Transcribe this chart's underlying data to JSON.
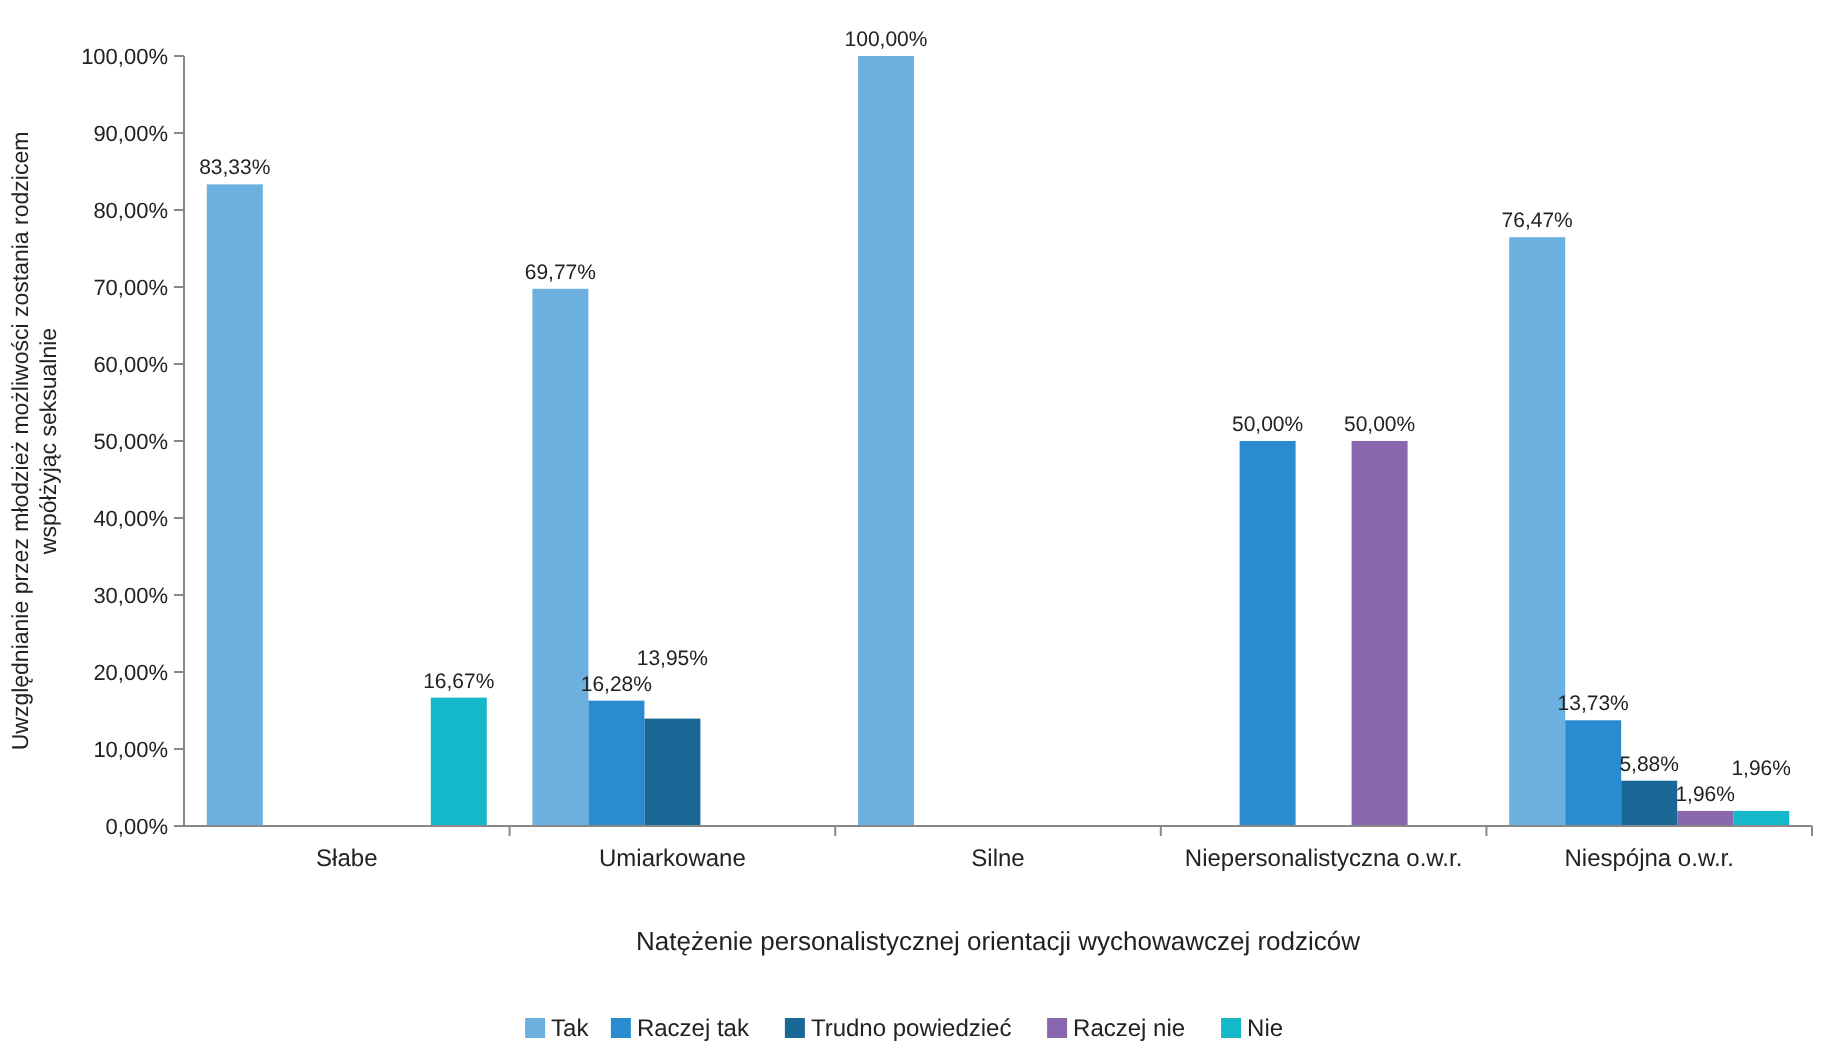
{
  "chart_data": {
    "type": "bar",
    "xlabel": "Natężenie personalistycznej orientacji wychowawczej rodziców",
    "ylabel": "Uwzględnianie przez młodzież możliwości zostania rodzicem współżyjąc seksualnie",
    "categories": [
      "Słabe",
      "Umiarkowane",
      "Silne",
      "Niepersonalistyczna o.w.r.",
      "Niespójna o.w.r."
    ],
    "series": [
      {
        "name": "Tak",
        "color": "#6cb0e0",
        "values": [
          83.33,
          69.77,
          100,
          null,
          76.47
        ],
        "value_labels": [
          "83,33%",
          "69,77%",
          "100,00%",
          null,
          "76,47%"
        ]
      },
      {
        "name": "Raczej tak",
        "color": "#2a8bd0",
        "values": [
          null,
          16.28,
          null,
          50,
          13.73
        ],
        "value_labels": [
          null,
          "16,28%",
          null,
          "50,00%",
          "13,73%"
        ]
      },
      {
        "name": "Trudno powiedzieć",
        "color": "#1a6896",
        "values": [
          null,
          13.95,
          null,
          null,
          5.88
        ],
        "value_labels": [
          null,
          "13,95%",
          null,
          null,
          "5,88%"
        ]
      },
      {
        "name": "Raczej nie",
        "color": "#8a68b0",
        "values": [
          null,
          null,
          null,
          50,
          1.96
        ],
        "value_labels": [
          null,
          null,
          null,
          "50,00%",
          "1,96%"
        ]
      },
      {
        "name": "Nie",
        "color": "#14b8c8",
        "values": [
          16.67,
          null,
          null,
          null,
          1.96
        ],
        "value_labels": [
          "16,67%",
          null,
          null,
          null,
          "1,96%"
        ]
      }
    ],
    "ylim": [
      0,
      100
    ],
    "yticks": [
      {
        "value": 0,
        "label": "0,00%"
      },
      {
        "value": 10,
        "label": "10,00%"
      },
      {
        "value": 20,
        "label": "20,00%"
      },
      {
        "value": 30,
        "label": "30,00%"
      },
      {
        "value": 40,
        "label": "40,00%"
      },
      {
        "value": 50,
        "label": "50,00%"
      },
      {
        "value": 60,
        "label": "60,00%"
      },
      {
        "value": 70,
        "label": "70,00%"
      },
      {
        "value": 80,
        "label": "80,00%"
      },
      {
        "value": 90,
        "label": "90,00%"
      },
      {
        "value": 100,
        "label": "100,00%"
      }
    ],
    "legend": "bottom"
  }
}
